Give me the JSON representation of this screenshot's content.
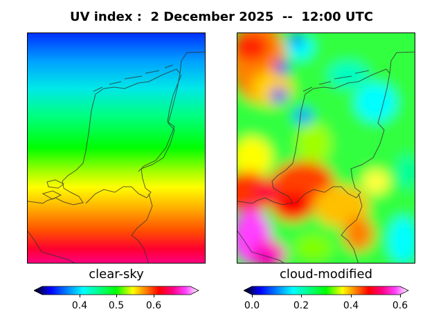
{
  "title": "UV index :  2 December 2025  --  12:00 UTC",
  "panels": [
    {
      "label": "clear-sky",
      "colorbar": {
        "ticks": [
          "0.4",
          "0.5",
          "0.6"
        ],
        "values": [
          0.4,
          0.5,
          0.6
        ],
        "range": [
          0.3,
          0.7
        ]
      }
    },
    {
      "label": "cloud-modified",
      "colorbar": {
        "ticks": [
          "0.0",
          "0.2",
          "0.4",
          "0.6"
        ],
        "values": [
          0.0,
          0.2,
          0.4,
          0.6
        ],
        "range": [
          0.0,
          0.6
        ]
      }
    }
  ],
  "colors": {
    "colormap": [
      "#000000",
      "#0000ff",
      "#0080ff",
      "#00ffff",
      "#00ff80",
      "#00ff00",
      "#80ff00",
      "#ffff00",
      "#ff8000",
      "#ff0000",
      "#ff0080",
      "#ff40ff",
      "#ffffff"
    ]
  }
}
